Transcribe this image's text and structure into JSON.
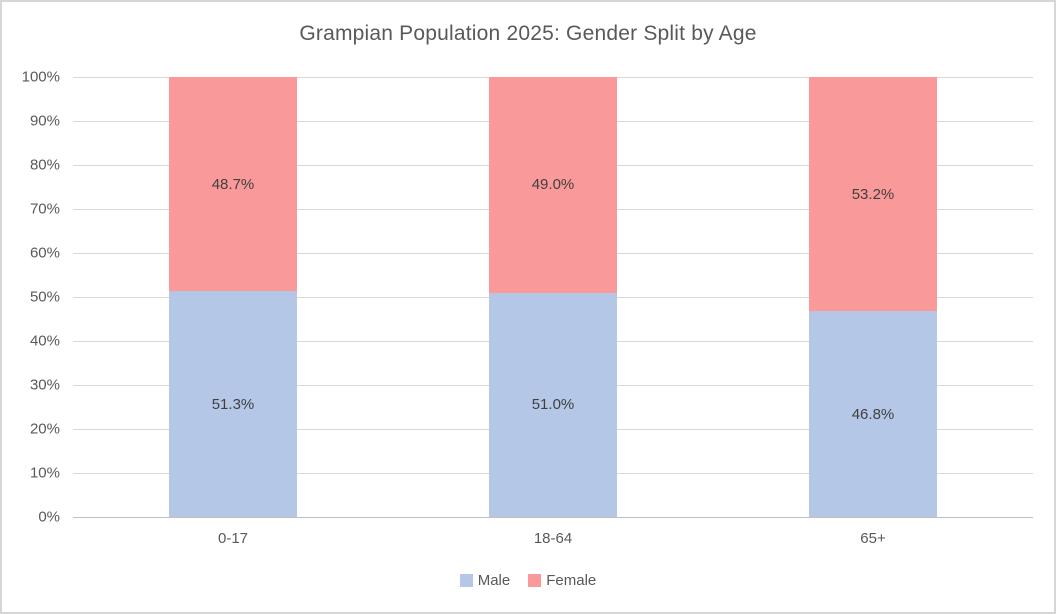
{
  "title": "Grampian Population 2025: Gender Split by Age",
  "colors": {
    "male": "#b4c7e7",
    "female": "#fa9999",
    "gridline": "#d9d9d9",
    "axis_line": "#bfbfbf",
    "axis_text": "#595959",
    "data_label_text": "#404040",
    "title_text": "#595959",
    "border": "#d6d6d6"
  },
  "legend": {
    "position": "bottom",
    "items": [
      {
        "label": "Male",
        "color": "#b4c7e7"
      },
      {
        "label": "Female",
        "color": "#fa9999"
      }
    ]
  },
  "chart_data": {
    "type": "bar",
    "subtype": "stacked-100-percent",
    "title": "Grampian Population 2025: Gender Split by Age",
    "categories": [
      "0-17",
      "18-64",
      "65+"
    ],
    "series": [
      {
        "name": "Male",
        "color": "#b4c7e7",
        "values": [
          51.3,
          51.0,
          46.8
        ],
        "data_labels": [
          "51.3%",
          "51.0%",
          "46.8%"
        ]
      },
      {
        "name": "Female",
        "color": "#fa9999",
        "values": [
          48.7,
          49.0,
          53.2
        ],
        "data_labels": [
          "48.7%",
          "49.0%",
          "53.2%"
        ]
      }
    ],
    "xlabel": "",
    "ylabel": "",
    "ylim": [
      0,
      100
    ],
    "yticks": [
      0,
      10,
      20,
      30,
      40,
      50,
      60,
      70,
      80,
      90,
      100
    ],
    "ytick_labels": [
      "0%",
      "10%",
      "20%",
      "30%",
      "40%",
      "50%",
      "60%",
      "70%",
      "80%",
      "90%",
      "100%"
    ],
    "grid": "horizontal",
    "legend_position": "bottom"
  }
}
